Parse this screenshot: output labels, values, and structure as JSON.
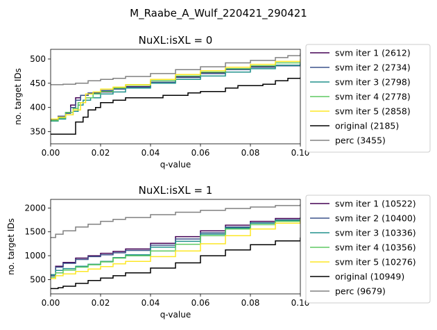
{
  "suptitle": "M_Raabe_A_Wulf_220421_290421",
  "colors": {
    "svm iter 1": "#440154",
    "svm iter 2": "#3b528b",
    "svm iter 3": "#21918c",
    "svm iter 4": "#5ec962",
    "svm iter 5": "#fde725",
    "original": "#000000",
    "perc": "#808080"
  },
  "chart_data": [
    {
      "type": "line",
      "title": "NuXL:isXL = 0",
      "xlabel": "q-value",
      "ylabel": "no. target IDs",
      "xlim": [
        0,
        0.1
      ],
      "ylim": [
        325,
        520
      ],
      "xticks": [
        "0.00",
        "0.02",
        "0.04",
        "0.06",
        "0.08",
        "0.10"
      ],
      "yticks": [
        "350",
        "400",
        "450",
        "500"
      ],
      "legend_position": "right-outside",
      "series": [
        {
          "name": "svm iter 1 (2612)",
          "color_key": "svm iter 1",
          "x": [
            0,
            0.003,
            0.006,
            0.008,
            0.01,
            0.012,
            0.015,
            0.02,
            0.025,
            0.03,
            0.04,
            0.05,
            0.06,
            0.07,
            0.08,
            0.09,
            0.1
          ],
          "y": [
            372,
            380,
            390,
            405,
            420,
            425,
            428,
            432,
            438,
            443,
            455,
            463,
            472,
            480,
            485,
            487,
            490
          ]
        },
        {
          "name": "svm iter 2 (2734)",
          "color_key": "svm iter 2",
          "x": [
            0,
            0.003,
            0.006,
            0.008,
            0.01,
            0.012,
            0.015,
            0.02,
            0.025,
            0.03,
            0.04,
            0.05,
            0.06,
            0.07,
            0.08,
            0.09,
            0.1
          ],
          "y": [
            375,
            382,
            388,
            400,
            415,
            425,
            430,
            435,
            438,
            442,
            452,
            462,
            470,
            478,
            483,
            486,
            489
          ]
        },
        {
          "name": "svm iter 3 (2798)",
          "color_key": "svm iter 3",
          "x": [
            0,
            0.003,
            0.006,
            0.009,
            0.011,
            0.013,
            0.016,
            0.02,
            0.025,
            0.03,
            0.04,
            0.05,
            0.06,
            0.07,
            0.08,
            0.09,
            0.1
          ],
          "y": [
            372,
            376,
            385,
            392,
            405,
            415,
            420,
            428,
            432,
            440,
            450,
            458,
            465,
            473,
            480,
            487,
            492
          ]
        },
        {
          "name": "svm iter 4 (2778)",
          "color_key": "svm iter 4",
          "x": [
            0,
            0.003,
            0.006,
            0.009,
            0.011,
            0.014,
            0.017,
            0.02,
            0.025,
            0.03,
            0.04,
            0.05,
            0.06,
            0.07,
            0.08,
            0.09,
            0.1
          ],
          "y": [
            373,
            378,
            390,
            398,
            410,
            420,
            428,
            433,
            440,
            446,
            455,
            465,
            473,
            480,
            486,
            492,
            496
          ]
        },
        {
          "name": "svm iter 5 (2858)",
          "color_key": "svm iter 5",
          "x": [
            0,
            0.003,
            0.006,
            0.009,
            0.012,
            0.014,
            0.017,
            0.02,
            0.025,
            0.03,
            0.04,
            0.05,
            0.06,
            0.07,
            0.08,
            0.09,
            0.1
          ],
          "y": [
            376,
            380,
            385,
            395,
            410,
            428,
            432,
            438,
            442,
            447,
            458,
            468,
            476,
            483,
            489,
            495,
            500
          ]
        },
        {
          "name": "original (2185)",
          "color_key": "original",
          "x": [
            0,
            0.004,
            0.008,
            0.01,
            0.013,
            0.015,
            0.018,
            0.02,
            0.025,
            0.03,
            0.04,
            0.045,
            0.05,
            0.055,
            0.06,
            0.07,
            0.075,
            0.08,
            0.085,
            0.09,
            0.095,
            0.1
          ],
          "y": [
            345,
            345,
            345,
            370,
            380,
            395,
            400,
            410,
            415,
            420,
            420,
            425,
            425,
            430,
            433,
            440,
            445,
            445,
            448,
            455,
            460,
            462
          ]
        },
        {
          "name": "perc (3455)",
          "color_key": "perc",
          "x": [
            0,
            0.005,
            0.01,
            0.015,
            0.02,
            0.025,
            0.03,
            0.04,
            0.05,
            0.06,
            0.07,
            0.08,
            0.09,
            0.095,
            0.1
          ],
          "y": [
            447,
            448,
            450,
            455,
            458,
            460,
            464,
            470,
            478,
            484,
            492,
            497,
            503,
            507,
            512
          ]
        }
      ]
    },
    {
      "type": "line",
      "title": "NuXL:isXL = 1",
      "xlabel": "q-value",
      "ylabel": "no. target IDs",
      "xlim": [
        0,
        0.1
      ],
      "ylim": [
        200,
        2180
      ],
      "xticks": [
        "0.00",
        "0.02",
        "0.04",
        "0.06",
        "0.08",
        "0.10"
      ],
      "yticks": [
        "500",
        "1000",
        "1500",
        "2000"
      ],
      "legend_position": "right-outside",
      "series": [
        {
          "name": "svm iter 1 (10522)",
          "color_key": "svm iter 1",
          "x": [
            0,
            0.002,
            0.005,
            0.01,
            0.015,
            0.02,
            0.025,
            0.03,
            0.04,
            0.05,
            0.06,
            0.07,
            0.08,
            0.09,
            0.1
          ],
          "y": [
            600,
            780,
            860,
            950,
            1000,
            1050,
            1090,
            1140,
            1260,
            1400,
            1520,
            1640,
            1720,
            1780,
            1800
          ]
        },
        {
          "name": "svm iter 2 (10400)",
          "color_key": "svm iter 2",
          "x": [
            0,
            0.002,
            0.005,
            0.01,
            0.015,
            0.02,
            0.025,
            0.03,
            0.04,
            0.05,
            0.06,
            0.07,
            0.08,
            0.09,
            0.1
          ],
          "y": [
            580,
            760,
            840,
            920,
            980,
            1020,
            1060,
            1110,
            1220,
            1350,
            1480,
            1600,
            1690,
            1750,
            1790
          ]
        },
        {
          "name": "svm iter 3 (10336)",
          "color_key": "svm iter 3",
          "x": [
            0,
            0.002,
            0.005,
            0.01,
            0.015,
            0.02,
            0.025,
            0.03,
            0.04,
            0.05,
            0.06,
            0.07,
            0.08,
            0.09,
            0.1
          ],
          "y": [
            600,
            690,
            730,
            780,
            820,
            880,
            960,
            1020,
            1180,
            1300,
            1450,
            1580,
            1680,
            1740,
            1780
          ]
        },
        {
          "name": "svm iter 4 (10356)",
          "color_key": "svm iter 4",
          "x": [
            0,
            0.002,
            0.005,
            0.01,
            0.015,
            0.02,
            0.025,
            0.03,
            0.04,
            0.05,
            0.06,
            0.07,
            0.08,
            0.09,
            0.1
          ],
          "y": [
            550,
            640,
            700,
            760,
            810,
            870,
            950,
            1000,
            1100,
            1240,
            1420,
            1560,
            1650,
            1720,
            1770
          ]
        },
        {
          "name": "svm iter 5 (10276)",
          "color_key": "svm iter 5",
          "x": [
            0,
            0.002,
            0.005,
            0.01,
            0.015,
            0.02,
            0.025,
            0.03,
            0.04,
            0.05,
            0.06,
            0.07,
            0.08,
            0.09,
            0.1
          ],
          "y": [
            520,
            580,
            620,
            670,
            720,
            770,
            830,
            880,
            980,
            1100,
            1250,
            1420,
            1560,
            1680,
            1760
          ]
        },
        {
          "name": "original (10949)",
          "color_key": "original",
          "x": [
            0,
            0.003,
            0.005,
            0.01,
            0.015,
            0.02,
            0.025,
            0.03,
            0.04,
            0.05,
            0.06,
            0.07,
            0.08,
            0.09,
            0.1
          ],
          "y": [
            310,
            330,
            360,
            420,
            480,
            530,
            580,
            640,
            740,
            850,
            1000,
            1120,
            1230,
            1310,
            1380
          ]
        },
        {
          "name": "perc (9679)",
          "color_key": "perc",
          "x": [
            0,
            0.002,
            0.005,
            0.01,
            0.015,
            0.02,
            0.025,
            0.03,
            0.04,
            0.05,
            0.06,
            0.07,
            0.08,
            0.09,
            0.1
          ],
          "y": [
            1380,
            1450,
            1520,
            1600,
            1660,
            1720,
            1760,
            1800,
            1860,
            1910,
            1950,
            1990,
            2020,
            2050,
            2080
          ]
        }
      ]
    }
  ]
}
